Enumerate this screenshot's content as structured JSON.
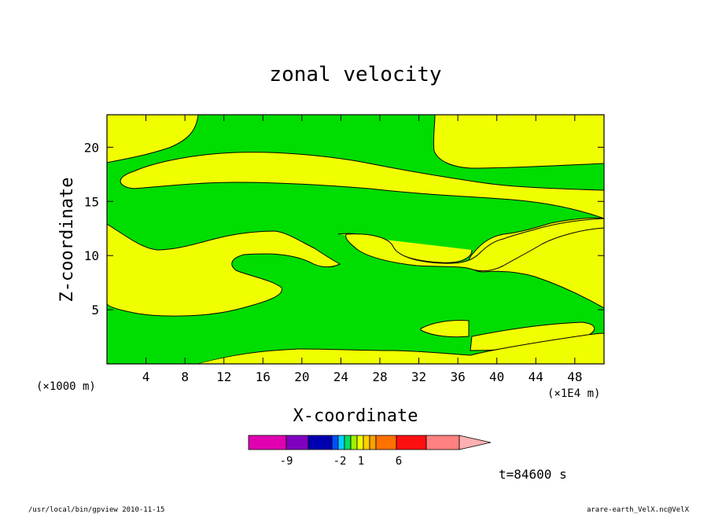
{
  "chart_data": {
    "type": "heatmap",
    "title": "zonal velocity",
    "xlabel": "X-coordinate",
    "ylabel": "Z-coordinate",
    "x_unit": "(×1E4 m)",
    "z_unit": "(×1000 m)",
    "xlim": [
      0,
      51
    ],
    "ylim": [
      0,
      23
    ],
    "x_ticks": [
      4,
      8,
      12,
      16,
      20,
      24,
      28,
      32,
      36,
      40,
      44,
      48
    ],
    "y_ticks": [
      5,
      10,
      15,
      20
    ],
    "regions": [
      {
        "name": "positive",
        "color": "#f0ff00"
      },
      {
        "name": "negative",
        "color": "#00dd00"
      }
    ],
    "colorbar": {
      "labels": [
        "-9",
        "-2",
        "1",
        "6"
      ],
      "colors": [
        "#e000b0",
        "#8000c0",
        "#0000b0",
        "#0050ff",
        "#00d0ff",
        "#00e060",
        "#a0f000",
        "#f0ff00",
        "#ffd000",
        "#ffa000",
        "#ff7000",
        "#ff1010",
        "#ff8080",
        "#ffb0b0"
      ]
    },
    "time_label": "t=84600 s"
  },
  "footer": {
    "left": "/usr/local/bin/gpview  2010-11-15",
    "right": "arare-earth_VelX.nc@VelX"
  }
}
